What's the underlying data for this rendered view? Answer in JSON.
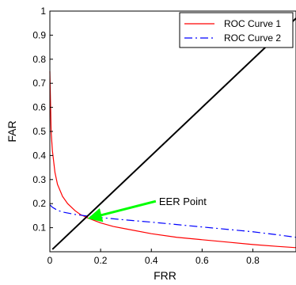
{
  "chart_data": {
    "type": "line",
    "xlabel": "FRR",
    "ylabel": "FAR",
    "xlim": [
      0,
      0.97
    ],
    "ylim": [
      0,
      1
    ],
    "xticks": [
      0,
      0.2,
      0.4,
      0.6,
      0.8
    ],
    "yticks": [
      0.1,
      0.2,
      0.3,
      0.4,
      0.5,
      0.6,
      0.7,
      0.8,
      0.9,
      1
    ],
    "grid": false,
    "legend_position": "top-right",
    "series": [
      {
        "name": "ROC Curve 1",
        "color": "#ff0000",
        "style": "solid",
        "x": [
          0.0,
          0.005,
          0.01,
          0.02,
          0.03,
          0.05,
          0.07,
          0.1,
          0.12,
          0.15,
          0.2,
          0.25,
          0.3,
          0.4,
          0.5,
          0.6,
          0.7,
          0.8,
          0.9,
          0.97
        ],
        "y": [
          0.75,
          0.5,
          0.42,
          0.33,
          0.28,
          0.23,
          0.2,
          0.17,
          0.155,
          0.14,
          0.12,
          0.105,
          0.095,
          0.075,
          0.06,
          0.05,
          0.04,
          0.03,
          0.022,
          0.017
        ]
      },
      {
        "name": "ROC Curve 2",
        "color": "#0000ff",
        "style": "dashdot",
        "x": [
          0.0,
          0.01,
          0.03,
          0.05,
          0.1,
          0.15,
          0.2,
          0.3,
          0.4,
          0.5,
          0.6,
          0.7,
          0.8,
          0.9,
          0.97
        ],
        "y": [
          0.195,
          0.185,
          0.172,
          0.165,
          0.155,
          0.148,
          0.142,
          0.132,
          0.123,
          0.113,
          0.103,
          0.093,
          0.083,
          0.07,
          0.06
        ]
      },
      {
        "name": "",
        "color": "#000000",
        "style": "solid",
        "x": [
          0.01,
          0.97
        ],
        "y": [
          0.01,
          0.97
        ]
      }
    ],
    "annotations": [
      {
        "text": "EER Point",
        "arrow_color": "#00ff00",
        "point": [
          0.145,
          0.145
        ],
        "text_at": [
          0.43,
          0.21
        ]
      }
    ]
  }
}
